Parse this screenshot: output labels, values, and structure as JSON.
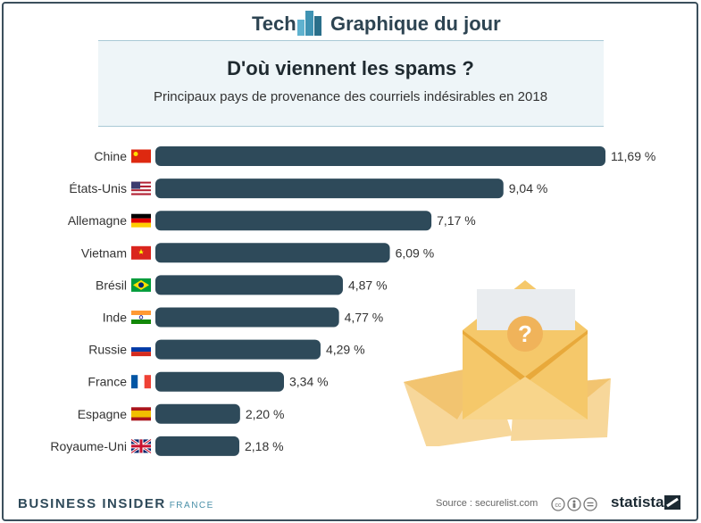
{
  "brand": {
    "left": "Tech",
    "right": "Graphique du jour"
  },
  "title": "D'où viennent les spams ?",
  "subtitle": "Principaux pays de provenance des courriels indésirables en 2018",
  "footer": {
    "publisher": "BUSINESS INSIDER",
    "edition": "FRANCE",
    "source": "Source : securelist.com",
    "statista": "statista"
  },
  "colors": {
    "bar": "#2e4a5a",
    "frame": "#3b4f5c",
    "accent": "#5fb2cf",
    "envelope": "#f5c86a"
  },
  "chart_data": {
    "type": "bar",
    "orientation": "horizontal",
    "categories": [
      "Chine",
      "États-Unis",
      "Allemagne",
      "Vietnam",
      "Brésil",
      "Inde",
      "Russie",
      "France",
      "Espagne",
      "Royaume-Uni"
    ],
    "values": [
      11.69,
      9.04,
      7.17,
      6.09,
      4.87,
      4.77,
      4.29,
      3.34,
      2.2,
      2.18
    ],
    "value_labels": [
      "11,69 %",
      "9,04 %",
      "7,17 %",
      "6,09 %",
      "4,87 %",
      "4,77 %",
      "4,29 %",
      "3,34 %",
      "2,20 %",
      "2,18 %"
    ],
    "flags": [
      "flag-china",
      "flag-usa",
      "flag-germany",
      "flag-vietnam",
      "flag-brazil",
      "flag-india",
      "flag-russia",
      "flag-france",
      "flag-spain",
      "flag-uk"
    ],
    "unit": "%",
    "grid": false,
    "legend": "none"
  }
}
